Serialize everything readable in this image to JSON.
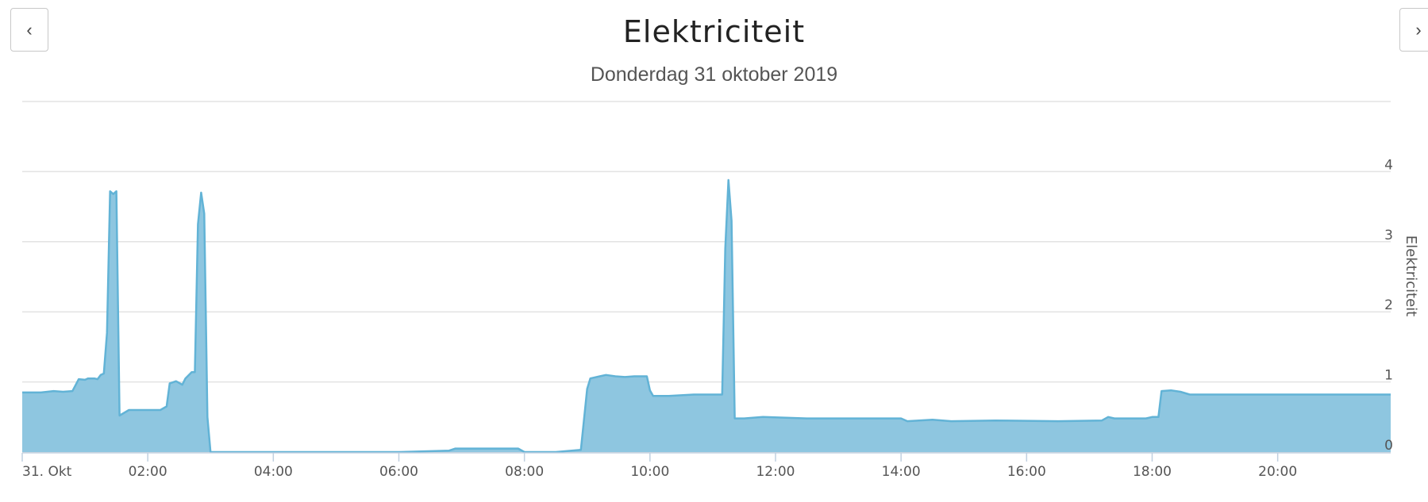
{
  "nav": {
    "prev_label": "‹",
    "next_label": "›"
  },
  "title": "Elektriciteit",
  "subtitle": "Donderdag 31 oktober 2019",
  "chart_data": {
    "type": "area",
    "ylabel": "Elektriciteit",
    "xlabel": "",
    "ylim": [
      0,
      5
    ],
    "xlim": [
      0,
      21.8
    ],
    "y_ticks": [
      0,
      1,
      2,
      3,
      4
    ],
    "x_ticks": [
      {
        "value": 0,
        "label": "31. Okt"
      },
      {
        "value": 2,
        "label": "02:00"
      },
      {
        "value": 4,
        "label": "04:00"
      },
      {
        "value": 6,
        "label": "06:00"
      },
      {
        "value": 8,
        "label": "08:00"
      },
      {
        "value": 10,
        "label": "10:00"
      },
      {
        "value": 12,
        "label": "12:00"
      },
      {
        "value": 14,
        "label": "14:00"
      },
      {
        "value": 16,
        "label": "16:00"
      },
      {
        "value": 18,
        "label": "18:00"
      },
      {
        "value": 20,
        "label": "20:00"
      }
    ],
    "grid": true,
    "colors": {
      "fill": "#8ec6e0",
      "line": "#62b3d6",
      "grid": "#e3e3e3",
      "axis": "#c0d0e0"
    },
    "series": [
      {
        "x": [
          0,
          0.3,
          0.5,
          0.65,
          0.8,
          0.9,
          1.0,
          1.05,
          1.15,
          1.2,
          1.25,
          1.3,
          1.35,
          1.4,
          1.45,
          1.5,
          1.55,
          1.7,
          2.0,
          2.2,
          2.3,
          2.35,
          2.45,
          2.55,
          2.6,
          2.7,
          2.75,
          2.8,
          2.85,
          2.9,
          2.95,
          3.0,
          4.0,
          5.0,
          6.0,
          6.8,
          6.9,
          7.3,
          7.8,
          7.9,
          8.0,
          8.5,
          8.9,
          9.0,
          9.05,
          9.2,
          9.3,
          9.45,
          9.6,
          9.75,
          9.95,
          10.0,
          10.05,
          10.3,
          10.7,
          11.15,
          11.2,
          11.25,
          11.3,
          11.35,
          11.4,
          11.45,
          11.5,
          11.8,
          12.5,
          13.2,
          14.0,
          14.1,
          14.5,
          14.8,
          15.5,
          16.5,
          17.2,
          17.3,
          17.4,
          17.6,
          17.9,
          18.0,
          18.1,
          18.15,
          18.3,
          18.45,
          18.6,
          19.5,
          20.5,
          21.0,
          21.8
        ],
        "values": [
          0.85,
          0.85,
          0.87,
          0.86,
          0.87,
          1.04,
          1.03,
          1.05,
          1.05,
          1.04,
          1.1,
          1.12,
          1.7,
          3.72,
          3.68,
          3.72,
          0.52,
          0.6,
          0.6,
          0.6,
          0.65,
          0.98,
          1.01,
          0.96,
          1.05,
          1.14,
          1.14,
          3.25,
          3.7,
          3.4,
          0.5,
          0.0,
          0.0,
          0.0,
          0.0,
          0.02,
          0.05,
          0.05,
          0.05,
          0.05,
          0.0,
          0.0,
          0.03,
          0.9,
          1.05,
          1.08,
          1.1,
          1.08,
          1.07,
          1.08,
          1.08,
          0.88,
          0.8,
          0.8,
          0.82,
          0.82,
          2.9,
          3.88,
          3.3,
          0.48,
          0.48,
          0.48,
          0.48,
          0.5,
          0.48,
          0.48,
          0.48,
          0.44,
          0.46,
          0.44,
          0.45,
          0.44,
          0.45,
          0.5,
          0.48,
          0.48,
          0.48,
          0.5,
          0.5,
          0.87,
          0.88,
          0.86,
          0.82,
          0.82,
          0.82,
          0.82,
          0.82
        ]
      }
    ]
  }
}
